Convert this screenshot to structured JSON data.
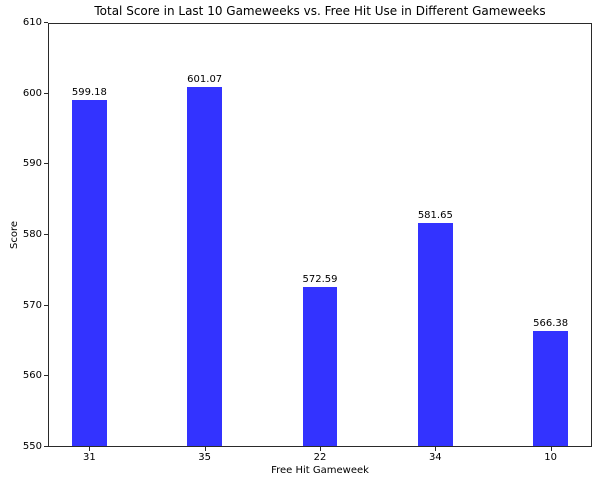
{
  "chart_data": {
    "type": "bar",
    "title": "Total Score in Last 10 Gameweeks vs. Free Hit Use in Different Gameweeks",
    "xlabel": "Free Hit Gameweek",
    "ylabel": "Score",
    "categories": [
      "31",
      "35",
      "22",
      "34",
      "10"
    ],
    "values": [
      599.18,
      601.07,
      572.59,
      581.65,
      566.38
    ],
    "value_labels": [
      "599.18",
      "601.07",
      "572.59",
      "581.65",
      "566.38"
    ],
    "ylim": [
      550,
      610
    ],
    "yticks": [
      550,
      560,
      570,
      580,
      590,
      600,
      610
    ],
    "xlim": [
      -0.35,
      4.35
    ],
    "bar_width_data_units": 0.3,
    "bar_color": "#3333ff",
    "grid": false,
    "legend_position": "none",
    "background_color": "#ffffff",
    "spine_color": "#2a2a2a"
  }
}
